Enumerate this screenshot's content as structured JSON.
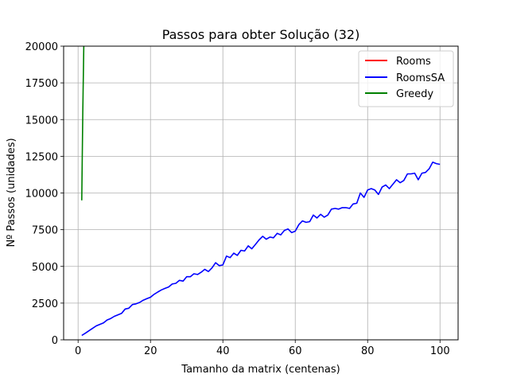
{
  "chart_data": {
    "type": "line",
    "title": "Passos para obter Solução (32)",
    "xlabel": "Tamanho da matrix (centenas)",
    "ylabel": "Nº Passos (unidades)",
    "xlim": [
      -4,
      105
    ],
    "ylim": [
      0,
      20000
    ],
    "xticks": [
      0,
      20,
      40,
      60,
      80,
      100
    ],
    "yticks": [
      0,
      2500,
      5000,
      7500,
      10000,
      12500,
      15000,
      17500,
      20000
    ],
    "grid": true,
    "legend_position": "top-right",
    "series": [
      {
        "name": "Rooms",
        "color": "#ff0000",
        "x": [],
        "y": []
      },
      {
        "name": "RoomsSA",
        "color": "#0000ff",
        "x": [
          1,
          2,
          3,
          4,
          5,
          6,
          7,
          8,
          9,
          10,
          11,
          12,
          13,
          14,
          15,
          16,
          17,
          18,
          19,
          20,
          21,
          22,
          23,
          24,
          25,
          26,
          27,
          28,
          29,
          30,
          31,
          32,
          33,
          34,
          35,
          36,
          37,
          38,
          39,
          40,
          41,
          42,
          43,
          44,
          45,
          46,
          47,
          48,
          49,
          50,
          51,
          52,
          53,
          54,
          55,
          56,
          57,
          58,
          59,
          60,
          61,
          62,
          63,
          64,
          65,
          66,
          67,
          68,
          69,
          70,
          71,
          72,
          73,
          74,
          75,
          76,
          77,
          78,
          79,
          80,
          81,
          82,
          83,
          84,
          85,
          86,
          87,
          88,
          89,
          90,
          91,
          92,
          93,
          94,
          95,
          96,
          97,
          98,
          99,
          100
        ],
        "y": [
          300,
          450,
          620,
          780,
          950,
          1050,
          1150,
          1350,
          1450,
          1600,
          1700,
          1800,
          2100,
          2150,
          2400,
          2450,
          2550,
          2700,
          2800,
          2900,
          3100,
          3250,
          3400,
          3500,
          3600,
          3800,
          3850,
          4050,
          4000,
          4300,
          4300,
          4500,
          4450,
          4600,
          4800,
          4650,
          4900,
          5250,
          5050,
          5100,
          5700,
          5600,
          5900,
          5750,
          6100,
          6050,
          6400,
          6200,
          6500,
          6800,
          7050,
          6850,
          7000,
          6950,
          7250,
          7150,
          7450,
          7550,
          7300,
          7400,
          7850,
          8100,
          8000,
          8050,
          8500,
          8300,
          8550,
          8350,
          8500,
          8900,
          8950,
          8900,
          9000,
          9000,
          8950,
          9250,
          9300,
          10000,
          9700,
          10200,
          10300,
          10200,
          9900,
          10400,
          10550,
          10300,
          10600,
          10900,
          10700,
          10850,
          11300,
          11300,
          11350,
          10900,
          11350,
          11400,
          11650,
          12100,
          12000,
          11950
        ]
      },
      {
        "name": "Greedy",
        "color": "#008000",
        "x": [
          1,
          1.3,
          1.6
        ],
        "y": [
          9500,
          15500,
          20500
        ]
      }
    ]
  }
}
